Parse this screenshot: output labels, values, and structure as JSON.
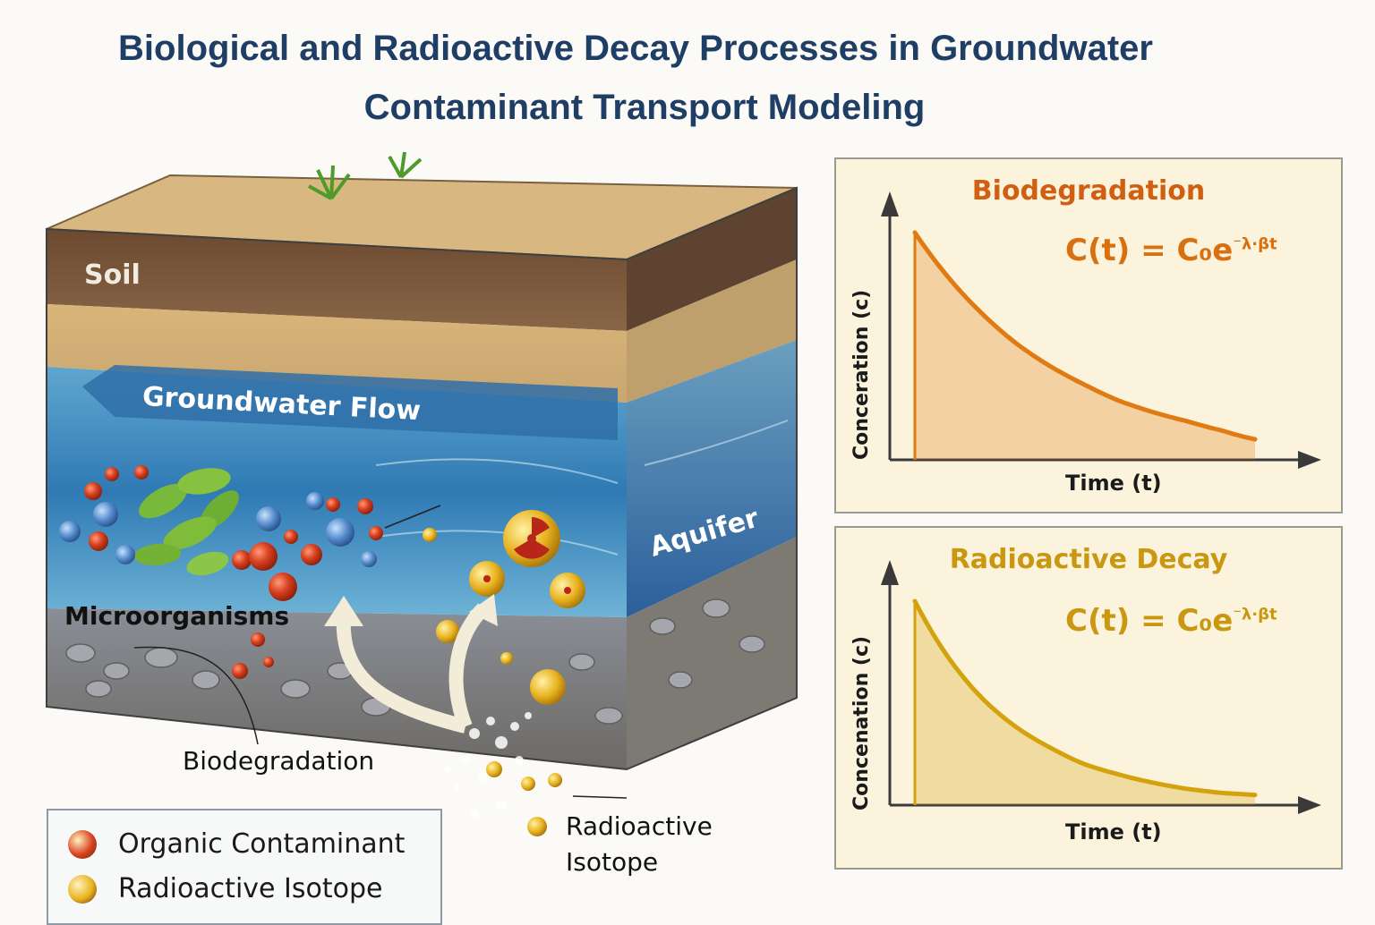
{
  "title": {
    "line1": "Biological and Radioactive Decay Processes in Groundwater",
    "line2": "Contaminant Transport Modeling"
  },
  "block_labels": {
    "soil": "Soil",
    "groundwater_flow": "Groundwater Flow",
    "aquifer": "Aquifer",
    "microorganisms": "Microorganisms",
    "biodegradation": "Biodegradation",
    "radioactive_isotope_line1": "Radioactive",
    "radioactive_isotope_line2": "Isotope"
  },
  "legend": {
    "items": [
      {
        "label": "Organic Contaminant",
        "color": "#d8411f"
      },
      {
        "label": "Radioactive Isotope",
        "color": "#e8b21e"
      }
    ]
  },
  "colors": {
    "title": "#1f3e66",
    "bio_accent": "#e07a12",
    "rad_accent": "#d4a20c"
  },
  "charts": {
    "biodegradation": {
      "title": "Biodegradation",
      "equation_main": "C(t) = C₀e",
      "equation_sup": "⁻λ·βt",
      "xlabel": "Time (t)",
      "ylabel": "Conceration (c)"
    },
    "radioactive": {
      "title": "Radioactive Decay",
      "equation_main": "C(t) = C₀e",
      "equation_sup": "⁻λ·βt",
      "xlabel": "Time (t)",
      "ylabel": "Concenation (c)"
    }
  },
  "chart_data": [
    {
      "type": "area",
      "title": "Biodegradation",
      "xlabel": "Time (t)",
      "ylabel": "Conceration (c)",
      "x": [
        0,
        1,
        2,
        3,
        4,
        5,
        6,
        7,
        8,
        9,
        10
      ],
      "y": [
        1.0,
        0.8,
        0.64,
        0.51,
        0.41,
        0.33,
        0.26,
        0.21,
        0.17,
        0.13,
        0.09
      ],
      "color": "#e07a12"
    },
    {
      "type": "area",
      "title": "Radioactive Decay",
      "xlabel": "Time (t)",
      "ylabel": "Concenation (c)",
      "x": [
        0,
        1,
        2,
        3,
        4,
        5,
        6,
        7,
        8,
        9,
        10
      ],
      "y": [
        1.0,
        0.72,
        0.52,
        0.38,
        0.28,
        0.2,
        0.15,
        0.11,
        0.08,
        0.06,
        0.05
      ],
      "color": "#d4a20c"
    }
  ]
}
